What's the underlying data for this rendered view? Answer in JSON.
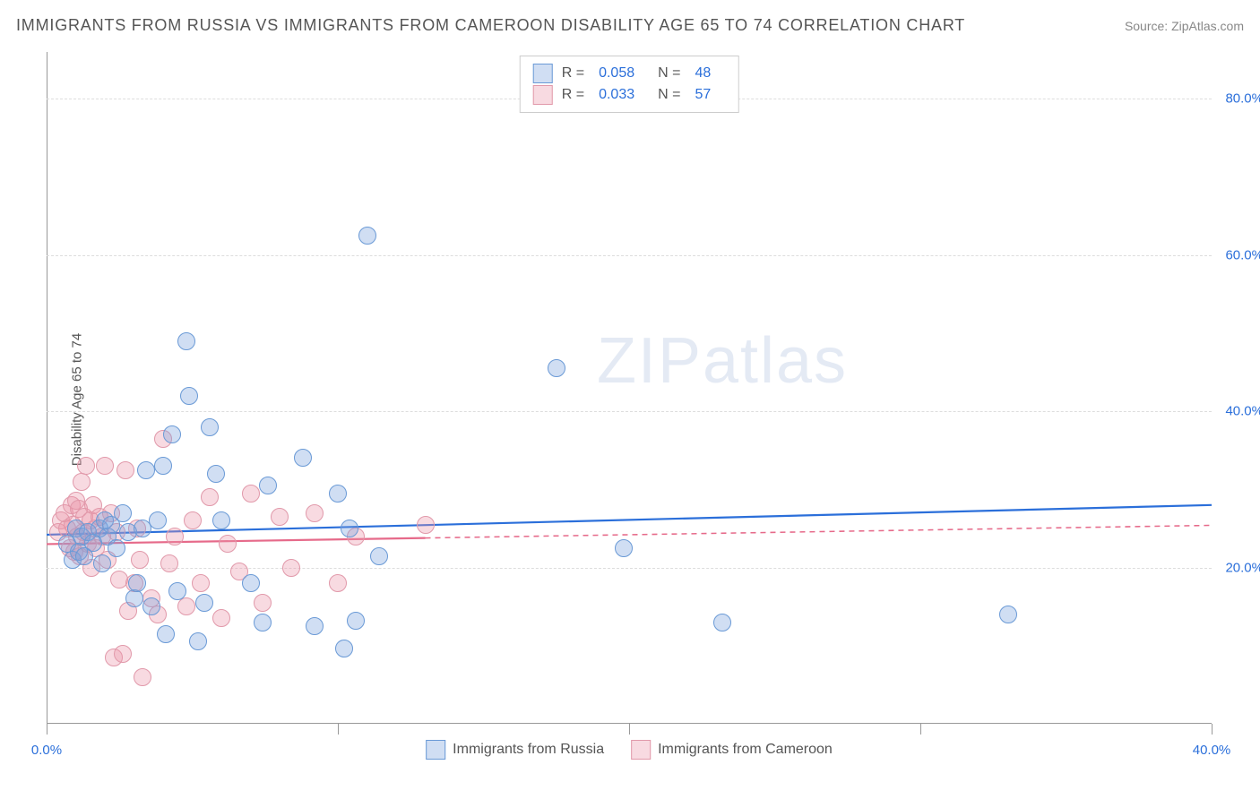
{
  "title": "IMMIGRANTS FROM RUSSIA VS IMMIGRANTS FROM CAMEROON DISABILITY AGE 65 TO 74 CORRELATION CHART",
  "source": "Source: ZipAtlas.com",
  "ylabel": "Disability Age 65 to 74",
  "watermark": "ZIPatlas",
  "chart": {
    "type": "scatter",
    "xlim": [
      0,
      40
    ],
    "ylim": [
      0,
      86
    ],
    "background_color": "#ffffff",
    "grid_color": "#dddddd",
    "axis_color": "#999999",
    "xticks": [
      0,
      10,
      20,
      30,
      40
    ],
    "xticklabels": [
      "0.0%",
      "",
      "",
      "",
      "40.0%"
    ],
    "yticks": [
      20,
      40,
      60,
      80
    ],
    "yticklabels": [
      "20.0%",
      "40.0%",
      "60.0%",
      "80.0%"
    ],
    "xtick_minor_gap": 10,
    "label_fontsize": 15,
    "tick_fontsize": 15,
    "tick_color": "#2b6fda",
    "marker_radius": 10,
    "marker_border_width": 1,
    "series": [
      {
        "name": "Immigrants from Russia",
        "fill": "rgba(120,160,220,0.35)",
        "stroke": "#6a9ad6",
        "trend_color": "#2b6fda",
        "trend_width": 2.2,
        "trend_dash": "none",
        "R": "0.058",
        "N": "48",
        "trend": {
          "x1": 0,
          "y1": 24.2,
          "x2": 40,
          "y2": 28.0
        },
        "data": [
          [
            0.7,
            23
          ],
          [
            0.9,
            21
          ],
          [
            1.0,
            25
          ],
          [
            1.1,
            22
          ],
          [
            1.2,
            24
          ],
          [
            1.3,
            21.5
          ],
          [
            1.4,
            24.5
          ],
          [
            1.6,
            23.2
          ],
          [
            1.8,
            25
          ],
          [
            1.9,
            20.5
          ],
          [
            2.0,
            26
          ],
          [
            2.1,
            24
          ],
          [
            2.2,
            25.5
          ],
          [
            2.4,
            22.5
          ],
          [
            2.6,
            27
          ],
          [
            2.8,
            24.5
          ],
          [
            3.0,
            16
          ],
          [
            3.1,
            18
          ],
          [
            3.3,
            25
          ],
          [
            3.4,
            32.5
          ],
          [
            3.6,
            15
          ],
          [
            3.8,
            26
          ],
          [
            4.0,
            33
          ],
          [
            4.1,
            11.5
          ],
          [
            4.3,
            37
          ],
          [
            4.5,
            17
          ],
          [
            4.8,
            49
          ],
          [
            4.9,
            42
          ],
          [
            5.2,
            10.5
          ],
          [
            5.4,
            15.5
          ],
          [
            5.6,
            38
          ],
          [
            5.8,
            32
          ],
          [
            6.0,
            26
          ],
          [
            7.0,
            18
          ],
          [
            7.4,
            13
          ],
          [
            7.6,
            30.5
          ],
          [
            8.8,
            34
          ],
          [
            9.2,
            12.5
          ],
          [
            10.0,
            29.5
          ],
          [
            10.2,
            9.6
          ],
          [
            10.4,
            25
          ],
          [
            10.6,
            13.2
          ],
          [
            11.0,
            62.5
          ],
          [
            11.4,
            21.5
          ],
          [
            17.5,
            45.5
          ],
          [
            19.8,
            22.5
          ],
          [
            23.2,
            13.0
          ],
          [
            33.0,
            14
          ]
        ]
      },
      {
        "name": "Immigrants from Cameroon",
        "fill": "rgba(235,150,170,0.35)",
        "stroke": "#e199aa",
        "trend_color": "#e66a8a",
        "trend_width": 2.2,
        "trend_dash": "6,5",
        "trend_solid_until_x": 13,
        "R": "0.033",
        "N": "57",
        "trend": {
          "x1": 0,
          "y1": 23.0,
          "x2": 40,
          "y2": 25.4
        },
        "data": [
          [
            0.4,
            24.5
          ],
          [
            0.5,
            26
          ],
          [
            0.6,
            27
          ],
          [
            0.7,
            25
          ],
          [
            0.8,
            22.5
          ],
          [
            0.85,
            28
          ],
          [
            0.9,
            25.5
          ],
          [
            0.95,
            22
          ],
          [
            1.0,
            28.5
          ],
          [
            1.05,
            24
          ],
          [
            1.1,
            27.5
          ],
          [
            1.15,
            21.5
          ],
          [
            1.2,
            31
          ],
          [
            1.25,
            24.5
          ],
          [
            1.3,
            26.5
          ],
          [
            1.35,
            33
          ],
          [
            1.4,
            23
          ],
          [
            1.5,
            26
          ],
          [
            1.55,
            20
          ],
          [
            1.6,
            28
          ],
          [
            1.65,
            25
          ],
          [
            1.7,
            22.5
          ],
          [
            1.8,
            26.5
          ],
          [
            1.9,
            24
          ],
          [
            2.0,
            33
          ],
          [
            2.1,
            21
          ],
          [
            2.2,
            27
          ],
          [
            2.3,
            8.5
          ],
          [
            2.4,
            24.5
          ],
          [
            2.5,
            18.5
          ],
          [
            2.6,
            9
          ],
          [
            2.7,
            32.5
          ],
          [
            2.8,
            14.5
          ],
          [
            3.0,
            18
          ],
          [
            3.1,
            25
          ],
          [
            3.2,
            21
          ],
          [
            3.3,
            6
          ],
          [
            3.6,
            16
          ],
          [
            3.8,
            14
          ],
          [
            4.0,
            36.5
          ],
          [
            4.2,
            20.5
          ],
          [
            4.4,
            24
          ],
          [
            4.8,
            15
          ],
          [
            5.0,
            26
          ],
          [
            5.3,
            18
          ],
          [
            5.6,
            29
          ],
          [
            6.0,
            13.5
          ],
          [
            6.2,
            23
          ],
          [
            6.6,
            19.5
          ],
          [
            7.0,
            29.5
          ],
          [
            7.4,
            15.5
          ],
          [
            8.0,
            26.5
          ],
          [
            8.4,
            20
          ],
          [
            9.2,
            27
          ],
          [
            10.0,
            18
          ],
          [
            10.6,
            24
          ],
          [
            13.0,
            25.5
          ]
        ]
      }
    ]
  },
  "legend_top": {
    "rows": [
      {
        "swatch_fill": "rgba(120,160,220,0.35)",
        "swatch_stroke": "#6a9ad6",
        "R_label": "R =",
        "R_val": "0.058",
        "N_label": "N =",
        "N_val": "48"
      },
      {
        "swatch_fill": "rgba(235,150,170,0.35)",
        "swatch_stroke": "#e199aa",
        "R_label": "R =",
        "R_val": "0.033",
        "N_label": "N =",
        "N_val": "57"
      }
    ]
  },
  "legend_bottom": [
    {
      "swatch_fill": "rgba(120,160,220,0.35)",
      "swatch_stroke": "#6a9ad6",
      "label": "Immigrants from Russia"
    },
    {
      "swatch_fill": "rgba(235,150,170,0.35)",
      "swatch_stroke": "#e199aa",
      "label": "Immigrants from Cameroon"
    }
  ]
}
